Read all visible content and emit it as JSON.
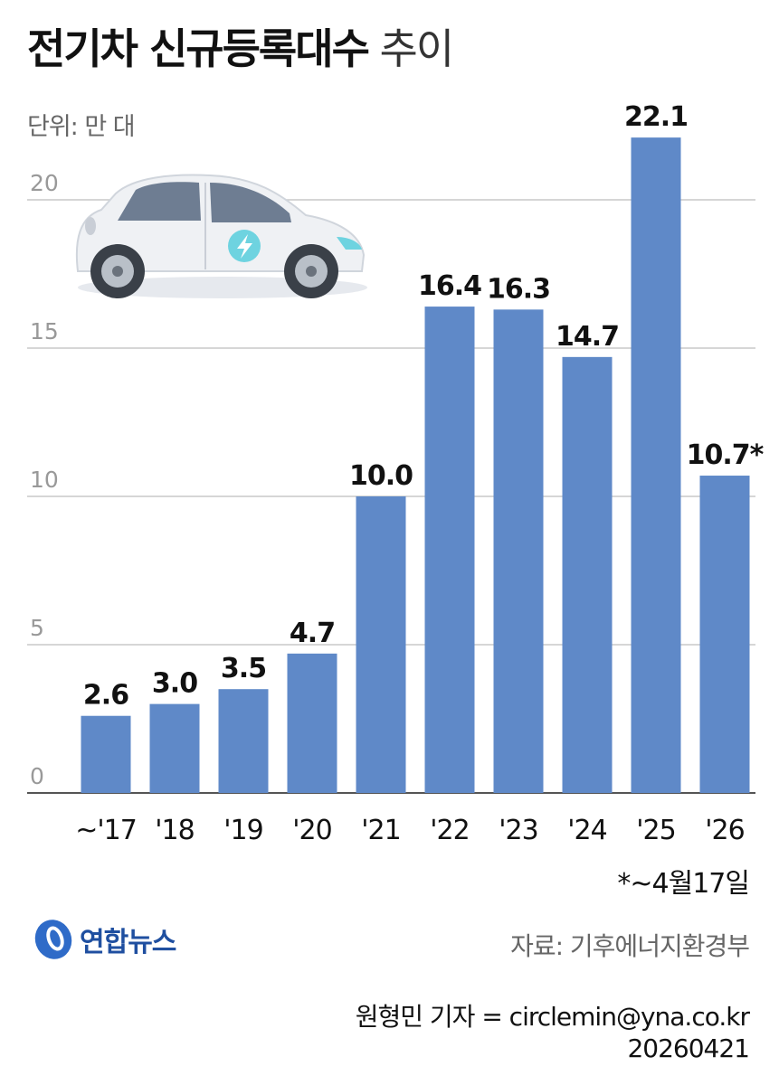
{
  "title_main": "전기차 신규등록대수",
  "title_suffix": "추이",
  "unit_label": "단위: 만 대",
  "footnote": "*~4월17일",
  "logo": {
    "name": "연합뉴스",
    "color": "#1f4fa0"
  },
  "source": "자료: 기후에너지환경부",
  "reporter": "원형민 기자 = circlemin@yna.co.kr",
  "date": "20260421",
  "illustration": {
    "name": "electric-car-illustration",
    "accent": "#6ed3e0"
  },
  "chart_data": {
    "type": "bar",
    "title": "전기차 신규등록대수 추이",
    "ylabel": "단위: 만 대",
    "xlabel": "",
    "categories": [
      "~'17",
      "'18",
      "'19",
      "'20",
      "'21",
      "'22",
      "'23",
      "'24",
      "'25",
      "'26"
    ],
    "values": [
      2.6,
      3.0,
      3.5,
      4.7,
      10.0,
      16.4,
      16.3,
      14.7,
      22.1,
      10.7
    ],
    "value_labels": [
      "2.6",
      "3.0",
      "3.5",
      "4.7",
      "10.0",
      "16.4",
      "16.3",
      "14.7",
      "22.1",
      "10.7*"
    ],
    "yticks": [
      0,
      5,
      10,
      15,
      20
    ],
    "ylim": [
      0,
      20
    ],
    "grid": true,
    "bar_color": "#5f89c8"
  }
}
